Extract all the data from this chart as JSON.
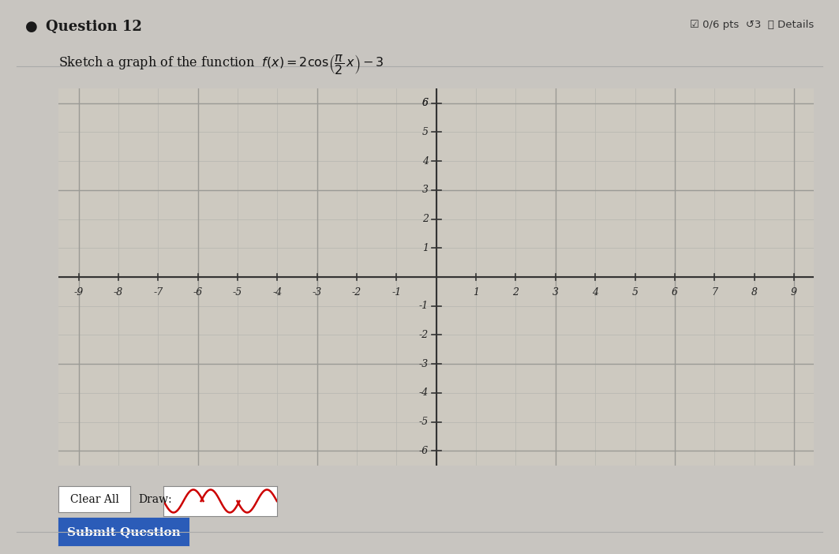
{
  "title": "Question 12",
  "top_right": "0/6 pts",
  "xlim": [
    -9,
    9
  ],
  "ylim": [
    -6,
    6
  ],
  "xticks": [
    -9,
    -8,
    -7,
    -6,
    -5,
    -4,
    -3,
    -2,
    -1,
    1,
    2,
    3,
    4,
    5,
    6,
    7,
    8,
    9
  ],
  "yticks": [
    -6,
    -5,
    -4,
    -3,
    -2,
    -1,
    1,
    2,
    3,
    4,
    5,
    6
  ],
  "bg_color": "#c8c8c8",
  "graph_bg": "#d0cfc8",
  "outer_bg": "#c5c5c0",
  "grid_color": "#b0b0b0",
  "axis_color": "#444444",
  "tick_label_color": "#222222",
  "button_color": "#2b5cb8",
  "button_text": "Submit Question",
  "clear_text": "Clear All",
  "draw_text": "Draw:",
  "title_fontsize": 13,
  "label_fontsize": 10,
  "tick_fontsize": 9
}
